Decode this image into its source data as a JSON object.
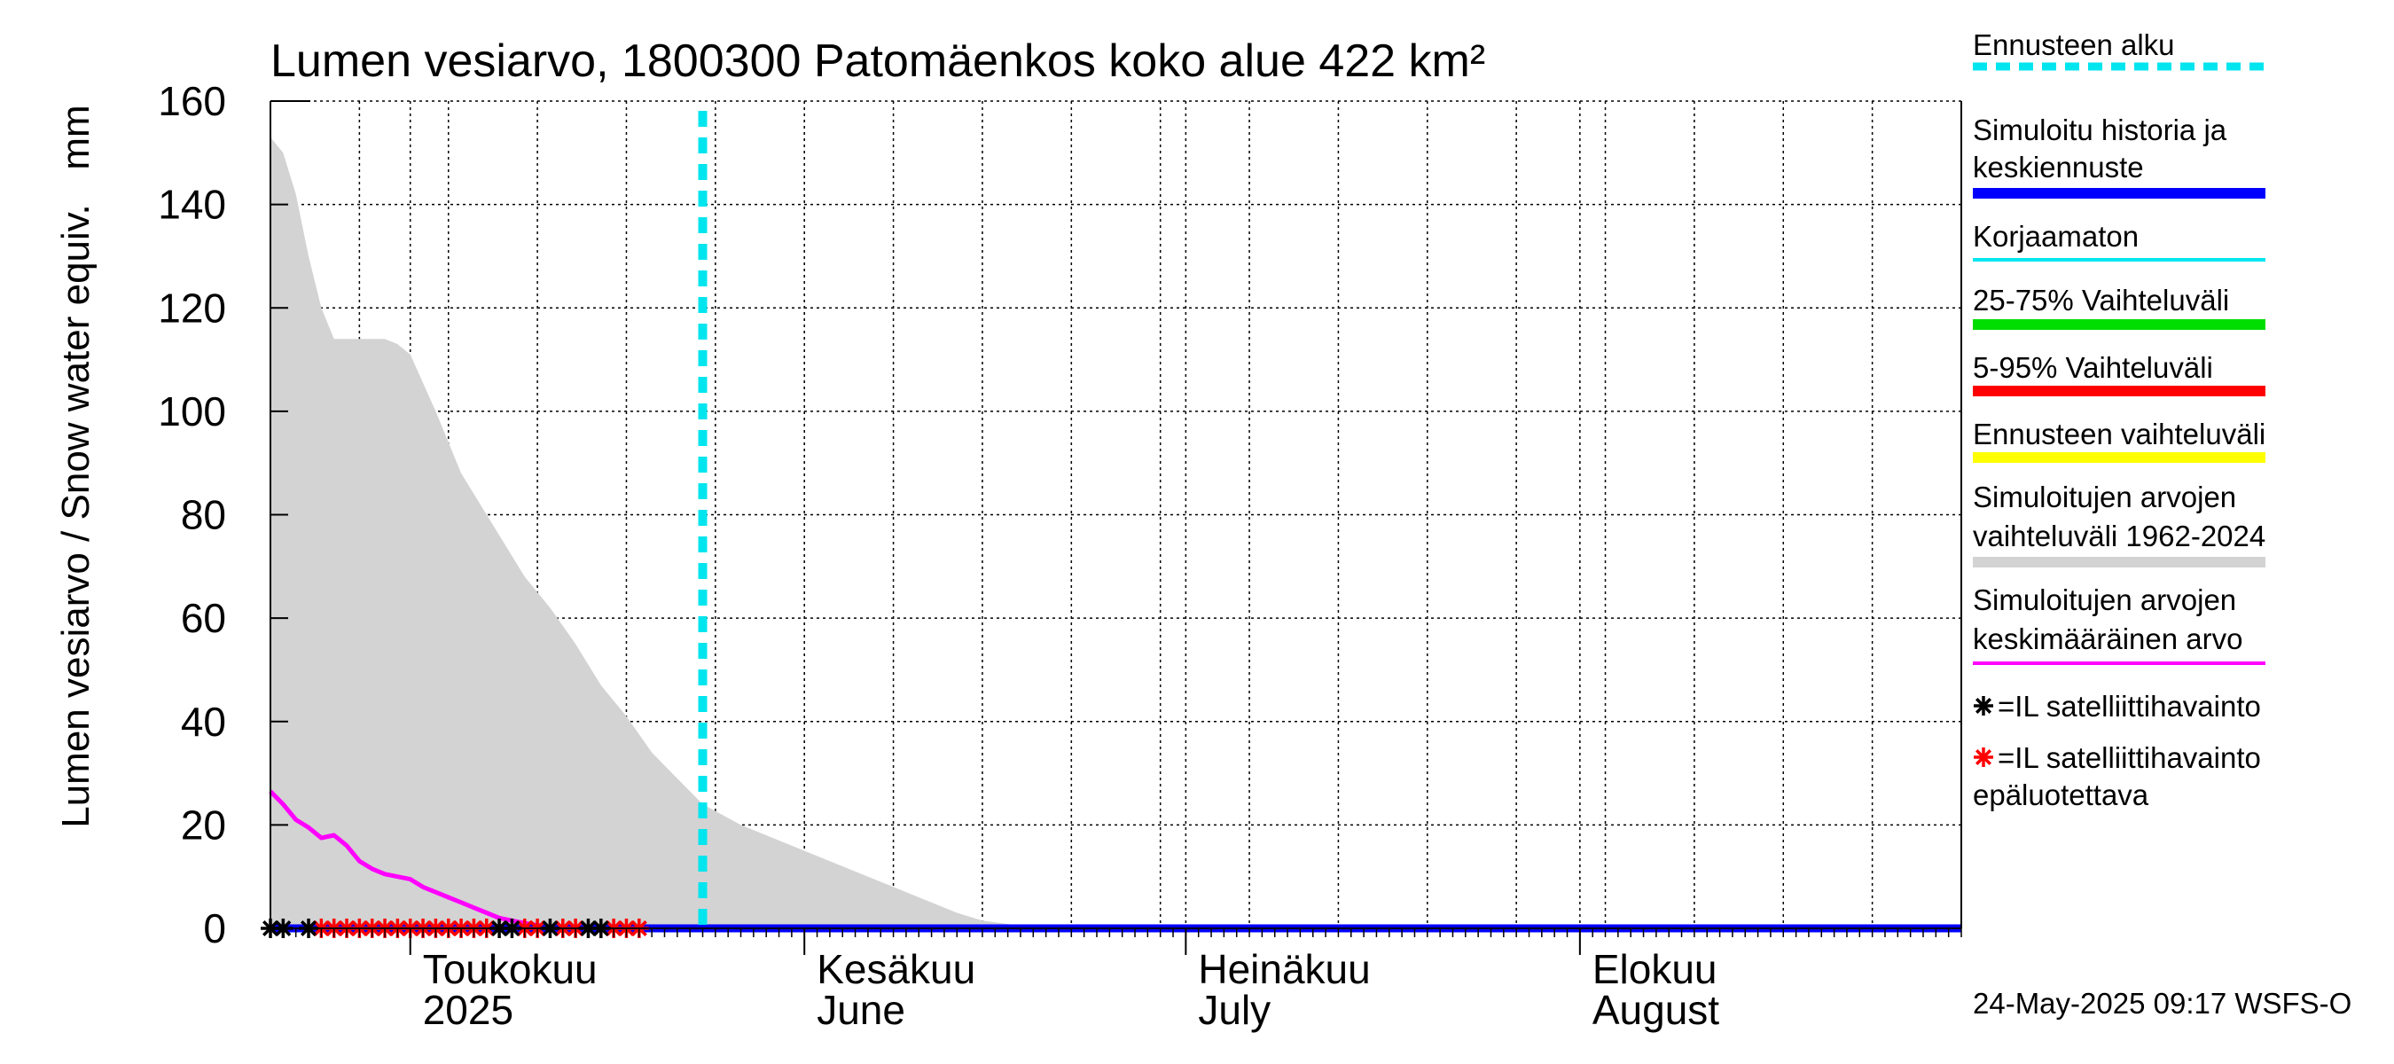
{
  "chart_data": {
    "type": "area",
    "title": "Lumen vesiarvo, 1800300 Patomäenkos koko alue 422 km²",
    "ylabel": "Lumen vesiarvo / Snow water equiv.",
    "yunit": "mm",
    "ylim": [
      0,
      160
    ],
    "yticks": [
      0,
      20,
      40,
      60,
      80,
      100,
      120,
      140,
      160
    ],
    "xlim": [
      "2025-04-20",
      "2025-08-31"
    ],
    "grid": true,
    "legend_position": "right",
    "month_labels": [
      {
        "date": "2025-05-01",
        "fi": "Toukokuu",
        "en": "2025"
      },
      {
        "date": "2025-06-01",
        "fi": "Kesäkuu",
        "en": "June"
      },
      {
        "date": "2025-07-01",
        "fi": "Heinäkuu",
        "en": "July"
      },
      {
        "date": "2025-08-01",
        "fi": "Elokuu",
        "en": "August"
      }
    ],
    "forecast_start": "2025-05-24",
    "range_band": {
      "name": "Simuloitujen arvojen vaihteluväli 1962-2024",
      "color": "#d3d3d3",
      "x": [
        "2025-04-20",
        "2025-04-21",
        "2025-04-22",
        "2025-04-23",
        "2025-04-24",
        "2025-04-25",
        "2025-04-26",
        "2025-04-27",
        "2025-04-28",
        "2025-04-29",
        "2025-04-30",
        "2025-05-01",
        "2025-05-03",
        "2025-05-05",
        "2025-05-08",
        "2025-05-10",
        "2025-05-12",
        "2025-05-14",
        "2025-05-16",
        "2025-05-18",
        "2025-05-20",
        "2025-05-22",
        "2025-05-24",
        "2025-05-27",
        "2025-05-30",
        "2025-06-03",
        "2025-06-07",
        "2025-06-10",
        "2025-06-13",
        "2025-06-15",
        "2025-06-18",
        "2025-06-21",
        "2025-06-25",
        "2025-08-31"
      ],
      "upper": [
        153,
        150,
        142,
        130,
        120,
        114,
        114,
        114,
        114,
        114,
        113,
        111,
        100,
        88,
        76,
        68,
        62,
        55,
        47,
        41,
        34,
        29,
        24,
        20,
        17,
        13,
        9,
        6,
        3,
        1.5,
        0.5,
        0.2,
        0,
        0
      ],
      "lower": [
        0,
        0,
        0,
        0,
        0,
        0,
        0,
        0,
        0,
        0,
        0,
        0,
        0,
        0,
        0,
        0,
        0,
        0,
        0,
        0,
        0,
        0,
        0,
        0,
        0,
        0,
        0,
        0,
        0,
        0,
        0,
        0,
        0,
        0
      ]
    },
    "series": [
      {
        "name": "Simuloitujen arvojen keskimääräinen arvo",
        "color": "#ff00ff",
        "x": [
          "2025-04-20",
          "2025-04-21",
          "2025-04-22",
          "2025-04-23",
          "2025-04-24",
          "2025-04-25",
          "2025-04-26",
          "2025-04-27",
          "2025-04-28",
          "2025-04-29",
          "2025-04-30",
          "2025-05-01",
          "2025-05-02",
          "2025-05-03",
          "2025-05-04",
          "2025-05-05",
          "2025-05-06",
          "2025-05-07",
          "2025-05-08",
          "2025-05-09",
          "2025-05-10",
          "2025-05-11",
          "2025-05-12",
          "2025-05-13",
          "2025-05-14",
          "2025-05-15",
          "2025-05-16",
          "2025-05-18"
        ],
        "values": [
          26.5,
          24,
          21,
          19.5,
          17.5,
          18,
          16,
          13,
          11.5,
          10.5,
          10,
          9.5,
          8,
          7,
          6,
          5,
          4,
          3,
          2,
          1.5,
          1,
          0.6,
          0.3,
          0.1,
          0,
          0,
          0,
          0
        ]
      },
      {
        "name": "Simuloitu historia ja keskiennuste",
        "color": "#0000ff",
        "x": [
          "2025-04-20",
          "2025-08-31"
        ],
        "values": [
          0,
          0
        ]
      }
    ],
    "satellite_observations": {
      "reliable": {
        "name": "=IL satelliittihavainto",
        "color": "#000000",
        "x": [
          "2025-04-20",
          "2025-04-21",
          "2025-04-23",
          "2025-05-08",
          "2025-05-09",
          "2025-05-12",
          "2025-05-15",
          "2025-05-16"
        ],
        "values": [
          0,
          0,
          0,
          0,
          0,
          0,
          0,
          0
        ]
      },
      "unreliable": {
        "name": "=IL satelliittihavainto epäluotettava",
        "color": "#ff0000",
        "x": [
          "2025-04-24",
          "2025-04-25",
          "2025-04-26",
          "2025-04-27",
          "2025-04-28",
          "2025-04-29",
          "2025-04-30",
          "2025-05-01",
          "2025-05-02",
          "2025-05-03",
          "2025-05-04",
          "2025-05-05",
          "2025-05-06",
          "2025-05-07",
          "2025-05-10",
          "2025-05-11",
          "2025-05-13",
          "2025-05-14",
          "2025-05-17",
          "2025-05-18",
          "2025-05-19"
        ],
        "values": [
          0,
          0,
          0,
          0,
          0,
          0,
          0,
          0,
          0,
          0,
          0,
          0,
          0,
          0,
          0,
          0,
          0,
          0,
          0,
          0,
          0
        ]
      }
    },
    "legend": [
      {
        "label": "Ennusteen alku",
        "color": "#00e5ee",
        "style": "dashed"
      },
      {
        "label": "Simuloitu historia ja keskiennuste",
        "color": "#0000ff",
        "style": "solid-thick"
      },
      {
        "label": "Korjaamaton",
        "color": "#00e5ee",
        "style": "solid"
      },
      {
        "label": "25-75% Vaihteluväli",
        "color": "#00dd00",
        "style": "solid-thick"
      },
      {
        "label": "5-95% Vaihteluväli",
        "color": "#ff0000",
        "style": "solid-thick"
      },
      {
        "label": "Ennusteen vaihteluväli",
        "color": "#ffff00",
        "style": "solid-thick"
      },
      {
        "label": "Simuloitujen arvojen vaihteluväli 1962-2024",
        "color": "#d3d3d3",
        "style": "solid-thick"
      },
      {
        "label": "Simuloitujen arvojen keskimääräinen arvo",
        "color": "#ff00ff",
        "style": "solid"
      },
      {
        "label": "=IL satelliittihavainto",
        "color": "#000000",
        "style": "marker"
      },
      {
        "label": "=IL satelliittihavainto epäluotettava",
        "color": "#ff0000",
        "style": "marker"
      }
    ]
  },
  "footer": {
    "timestamp": "24-May-2025 09:17 WSFS-O"
  }
}
